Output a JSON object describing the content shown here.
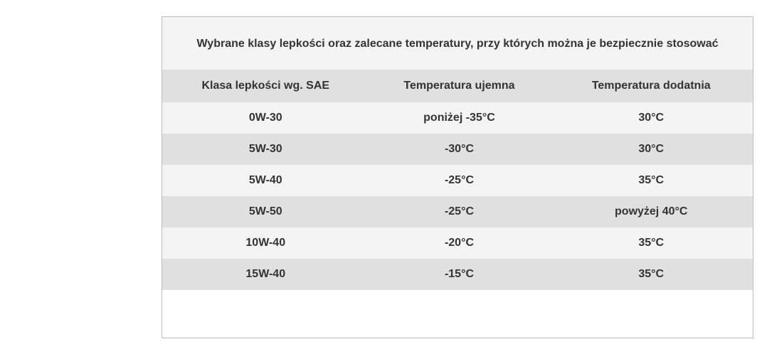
{
  "colors": {
    "page_background": "#ffffff",
    "panel_border": "#bdbdbd",
    "band_light": "#f4f4f4",
    "band_dark": "#e0e0e0",
    "text": "#333333"
  },
  "chart_data": {
    "type": "table",
    "title": "Wybrane klasy lepkości oraz zalecane temperatury, przy których można je bezpiecznie stosować",
    "columns": [
      "Klasa lepkości wg. SAE",
      "Temperatura ujemna",
      "Temperatura dodatnia"
    ],
    "rows": [
      [
        "0W-30",
        "poniżej -35°C",
        "30°C"
      ],
      [
        "5W-30",
        "-30°C",
        "30°C"
      ],
      [
        "5W-40",
        "-25°C",
        "35°C"
      ],
      [
        "5W-50",
        "-25°C",
        "powyżej 40°C"
      ],
      [
        "10W-40",
        "-20°C",
        "35°C"
      ],
      [
        "15W-40",
        "-15°C",
        "35°C"
      ]
    ],
    "layout": {
      "row_striping": [
        "light",
        "dark"
      ],
      "header_background": "#e0e0e0",
      "title_background": "#f4f4f4",
      "grid": false
    }
  }
}
